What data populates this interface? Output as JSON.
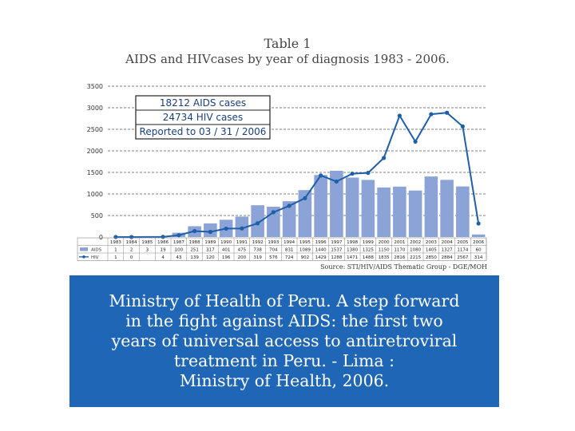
{
  "title": "Table 1",
  "subtitle": "AIDS and HIVcases by year of diagnosis 1983 - 2006.",
  "source": "Source: STI/HIV/AIDS Thematic Group - DGE/MOH",
  "callout": [
    "18212 AIDS cases",
    "24734 HIV cases",
    "Reported to 03 / 31 / 2006"
  ],
  "caption_lines": [
    "Ministry of Health of Peru. A step forward",
    "in the fight against AIDS: the first two",
    "years of universal access to antiretroviral",
    "treatment in Peru. - Lima :",
    "Ministry of Health, 2006."
  ],
  "colors": {
    "bar": "#8ba3d6",
    "line": "#1f5ea8",
    "caption_bg": "#2066b6",
    "grid": "#555555"
  },
  "chart_data": {
    "type": "bar",
    "categories": [
      "1983",
      "1984",
      "1985",
      "1986",
      "1987",
      "1988",
      "1989",
      "1990",
      "1991",
      "1992",
      "1993",
      "1994",
      "1995",
      "1996",
      "1997",
      "1998",
      "1999",
      "2000",
      "2001",
      "2002",
      "2003",
      "2004",
      "2005",
      "2006"
    ],
    "yticks": [
      "0",
      "500",
      "1000",
      "1500",
      "2000",
      "2500",
      "3000",
      "3500"
    ],
    "ylim": [
      0,
      3500
    ],
    "series": [
      {
        "name": "AIDS",
        "type": "bar",
        "values": [
          1,
          2,
          3,
          19,
          100,
          251,
          317,
          401,
          475,
          738,
          704,
          831,
          1089,
          1440,
          1537,
          1380,
          1325,
          1150,
          1170,
          1080,
          1405,
          1327,
          1174,
          60
        ],
        "labels": [
          "1",
          "2",
          "3",
          "19",
          "100",
          "251",
          "317",
          "401",
          "475",
          "738",
          "704",
          "831",
          "1089",
          "1440",
          "1537",
          "1380",
          "1325",
          "1150",
          "1170",
          "1080",
          "1405",
          "1327",
          "1174",
          "60"
        ]
      },
      {
        "name": "HIV",
        "type": "line",
        "values": [
          1,
          0,
          null,
          4,
          43,
          139,
          120,
          196,
          200,
          319,
          576,
          724,
          902,
          1429,
          1288,
          1471,
          1488,
          1835,
          2816,
          2215,
          2850,
          2884,
          2567,
          314
        ],
        "labels": [
          "1",
          "0",
          "",
          "4",
          "43",
          "139",
          "120",
          "196",
          "200",
          "319",
          "576",
          "724",
          "902",
          "1429",
          "1288",
          "1471",
          "1488",
          "1835",
          "2816",
          "2215",
          "2850",
          "2884",
          "2567",
          "314"
        ]
      }
    ],
    "grid": true,
    "grid_style": "dashed"
  }
}
